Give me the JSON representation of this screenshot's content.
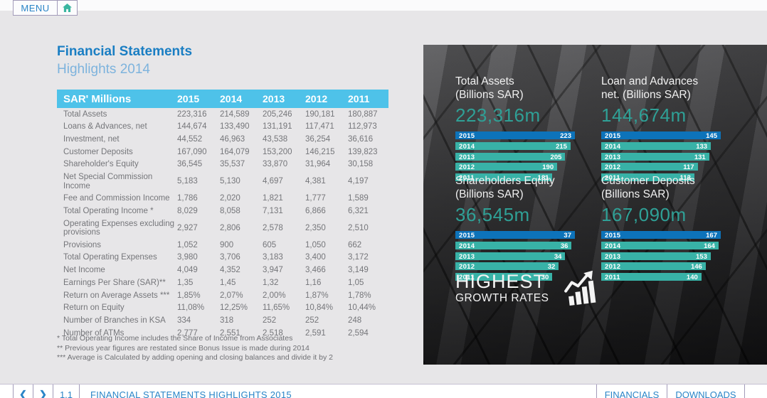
{
  "menu": {
    "label": "MENU"
  },
  "page": {
    "title": "Financial Statements",
    "subtitle": "Highlights 2014"
  },
  "table": {
    "header": [
      "SAR' Millions",
      "2015",
      "2014",
      "2013",
      "2012",
      "2011"
    ],
    "rows": [
      [
        "Total Assets",
        "223,316",
        "214,589",
        "205,246",
        "190,181",
        "180,887"
      ],
      [
        "Loans & Advances, net",
        "144,674",
        "133,490",
        "131,191",
        "117,471",
        "112,973"
      ],
      [
        "Investment, net",
        "44,552",
        "46,963",
        "43,538",
        "36,254",
        "36,616"
      ],
      [
        "Customer Deposits",
        "167,090",
        "164,079",
        "153,200",
        "146,215",
        "139,823"
      ],
      [
        "Shareholder's Equity",
        "36,545",
        "35,537",
        "33,870",
        "31,964",
        "30,158"
      ],
      [
        "Net Special Commission Income",
        "5,183",
        "5,130",
        "4,697",
        "4,381",
        "4,197"
      ],
      [
        "Fee and Commission Income",
        "1,786",
        "2,020",
        "1,821",
        "1,777",
        "1,589"
      ],
      [
        "Total Operating Income *",
        "8,029",
        "8,058",
        "7,131",
        "6,866",
        "6,321"
      ],
      [
        "Operating Expenses excluding provisions",
        "2,927",
        "2,806",
        "2,578",
        "2,350",
        "2,510"
      ],
      [
        "Provisions",
        "1,052",
        "900",
        "605",
        "1,050",
        "662"
      ],
      [
        "Total Operating Expenses",
        "3,980",
        "3,706",
        "3,183",
        "3,400",
        "3,172"
      ],
      [
        "Net Income",
        "4,049",
        "4,352",
        "3,947",
        "3,466",
        "3,149"
      ],
      [
        "Earnings Per Share (SAR)**",
        "1,35",
        "1,45",
        "1,32",
        "1,16",
        "1,05"
      ],
      [
        "Return on Average Assets ***",
        "1,85%",
        "2,07%",
        "2,00%",
        "1,87%",
        "1,78%"
      ],
      [
        "Return on Equity",
        "11,08%",
        "12,25%",
        "11,65%",
        "10,84%",
        "10,44%"
      ],
      [
        "Number of Branches in KSA",
        "334",
        "318",
        "252",
        "252",
        "248"
      ],
      [
        "Number of ATMs",
        "2,777",
        "2,551",
        "2,518",
        "2,591",
        "2,594"
      ]
    ],
    "footnotes": [
      "* Total Operating Income includes the Share of Income from Associates",
      "** Previous year figures are restated since Bonus Issue is made during 2014",
      "*** Average is Calculated by adding opening and closing balances and divide it by 2"
    ]
  },
  "charts": [
    {
      "type": "bar",
      "title_line1": "Total Assets",
      "title_line2": "(Billions SAR)",
      "big_value": "223,316m",
      "bars": [
        {
          "year": "2015",
          "value": 223
        },
        {
          "year": "2014",
          "value": 215
        },
        {
          "year": "2013",
          "value": 205
        },
        {
          "year": "2012",
          "value": 190
        },
        {
          "year": "2011",
          "value": 181
        }
      ]
    },
    {
      "type": "bar",
      "title_line1": "Loan and Advances",
      "title_line2": "net. (Billions SAR)",
      "big_value": "144,674m",
      "bars": [
        {
          "year": "2015",
          "value": 145
        },
        {
          "year": "2014",
          "value": 133
        },
        {
          "year": "2013",
          "value": 131
        },
        {
          "year": "2012",
          "value": 117
        },
        {
          "year": "2011",
          "value": 113
        }
      ]
    },
    {
      "type": "bar",
      "title_line1": "Shareholders Equity",
      "title_line2": "(Billions SAR)",
      "big_value": "36,545m",
      "bars": [
        {
          "year": "2015",
          "value": 37
        },
        {
          "year": "2014",
          "value": 36
        },
        {
          "year": "2013",
          "value": 34
        },
        {
          "year": "2012",
          "value": 32
        },
        {
          "year": "2011",
          "value": 30
        }
      ]
    },
    {
      "type": "bar",
      "title_line1": "Customer Deposits",
      "title_line2": "(Billions SAR)",
      "big_value": "167,090m",
      "bars": [
        {
          "year": "2015",
          "value": 167
        },
        {
          "year": "2014",
          "value": 164
        },
        {
          "year": "2013",
          "value": 153
        },
        {
          "year": "2012",
          "value": 146
        },
        {
          "year": "2011",
          "value": 140
        }
      ]
    }
  ],
  "highlight": {
    "line1": "HIGHEST",
    "line2": "GROWTH RATES"
  },
  "footer": {
    "prev": "❮",
    "next": "❯",
    "page_number": "1.1",
    "title": "FINANCIAL STATEMENTS HIGHLIGHTS 2015",
    "financials": "FINANCIALS",
    "downloads": "DOWNLOADS"
  },
  "colors": {
    "accent_blue": "#1a7ec3",
    "light_blue": "#7db3dd",
    "table_header_blue": "#4ec2e9",
    "link_blue": "#2a85c7",
    "bar_teal": "#38b2a7",
    "bar_current_blue": "#0d73ba",
    "big_number_teal": "#2fa096"
  }
}
